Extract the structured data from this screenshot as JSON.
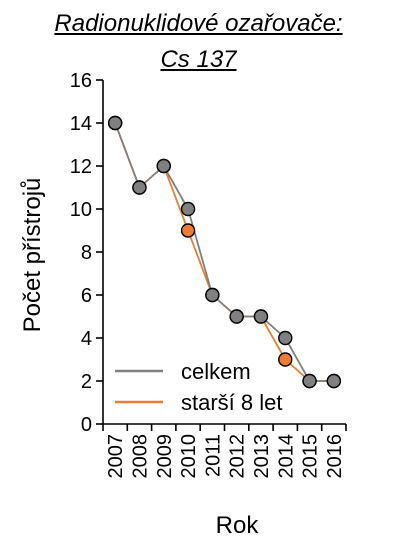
{
  "chart_data": {
    "type": "line",
    "title_lines": [
      "Radionuklidové ozařovače:",
      "Cs 137"
    ],
    "xlabel": "Rok",
    "ylabel": "Počet přístrojů",
    "x": [
      "2007",
      "2008",
      "2009",
      "2010",
      "2011",
      "2012",
      "2013",
      "2014",
      "2015",
      "2016"
    ],
    "ylim": [
      0,
      16
    ],
    "yticks": [
      0,
      2,
      4,
      6,
      8,
      10,
      12,
      14,
      16
    ],
    "grid": false,
    "legend_position": "bottom-left",
    "series": [
      {
        "name": "celkem",
        "color": "#808080",
        "values": [
          14,
          11,
          12,
          10,
          6,
          5,
          5,
          4,
          2,
          2
        ]
      },
      {
        "name": "starší 8 let",
        "color": "#ED7D31",
        "values": [
          14,
          11,
          12,
          9,
          6,
          5,
          5,
          3,
          2,
          2
        ]
      }
    ]
  }
}
